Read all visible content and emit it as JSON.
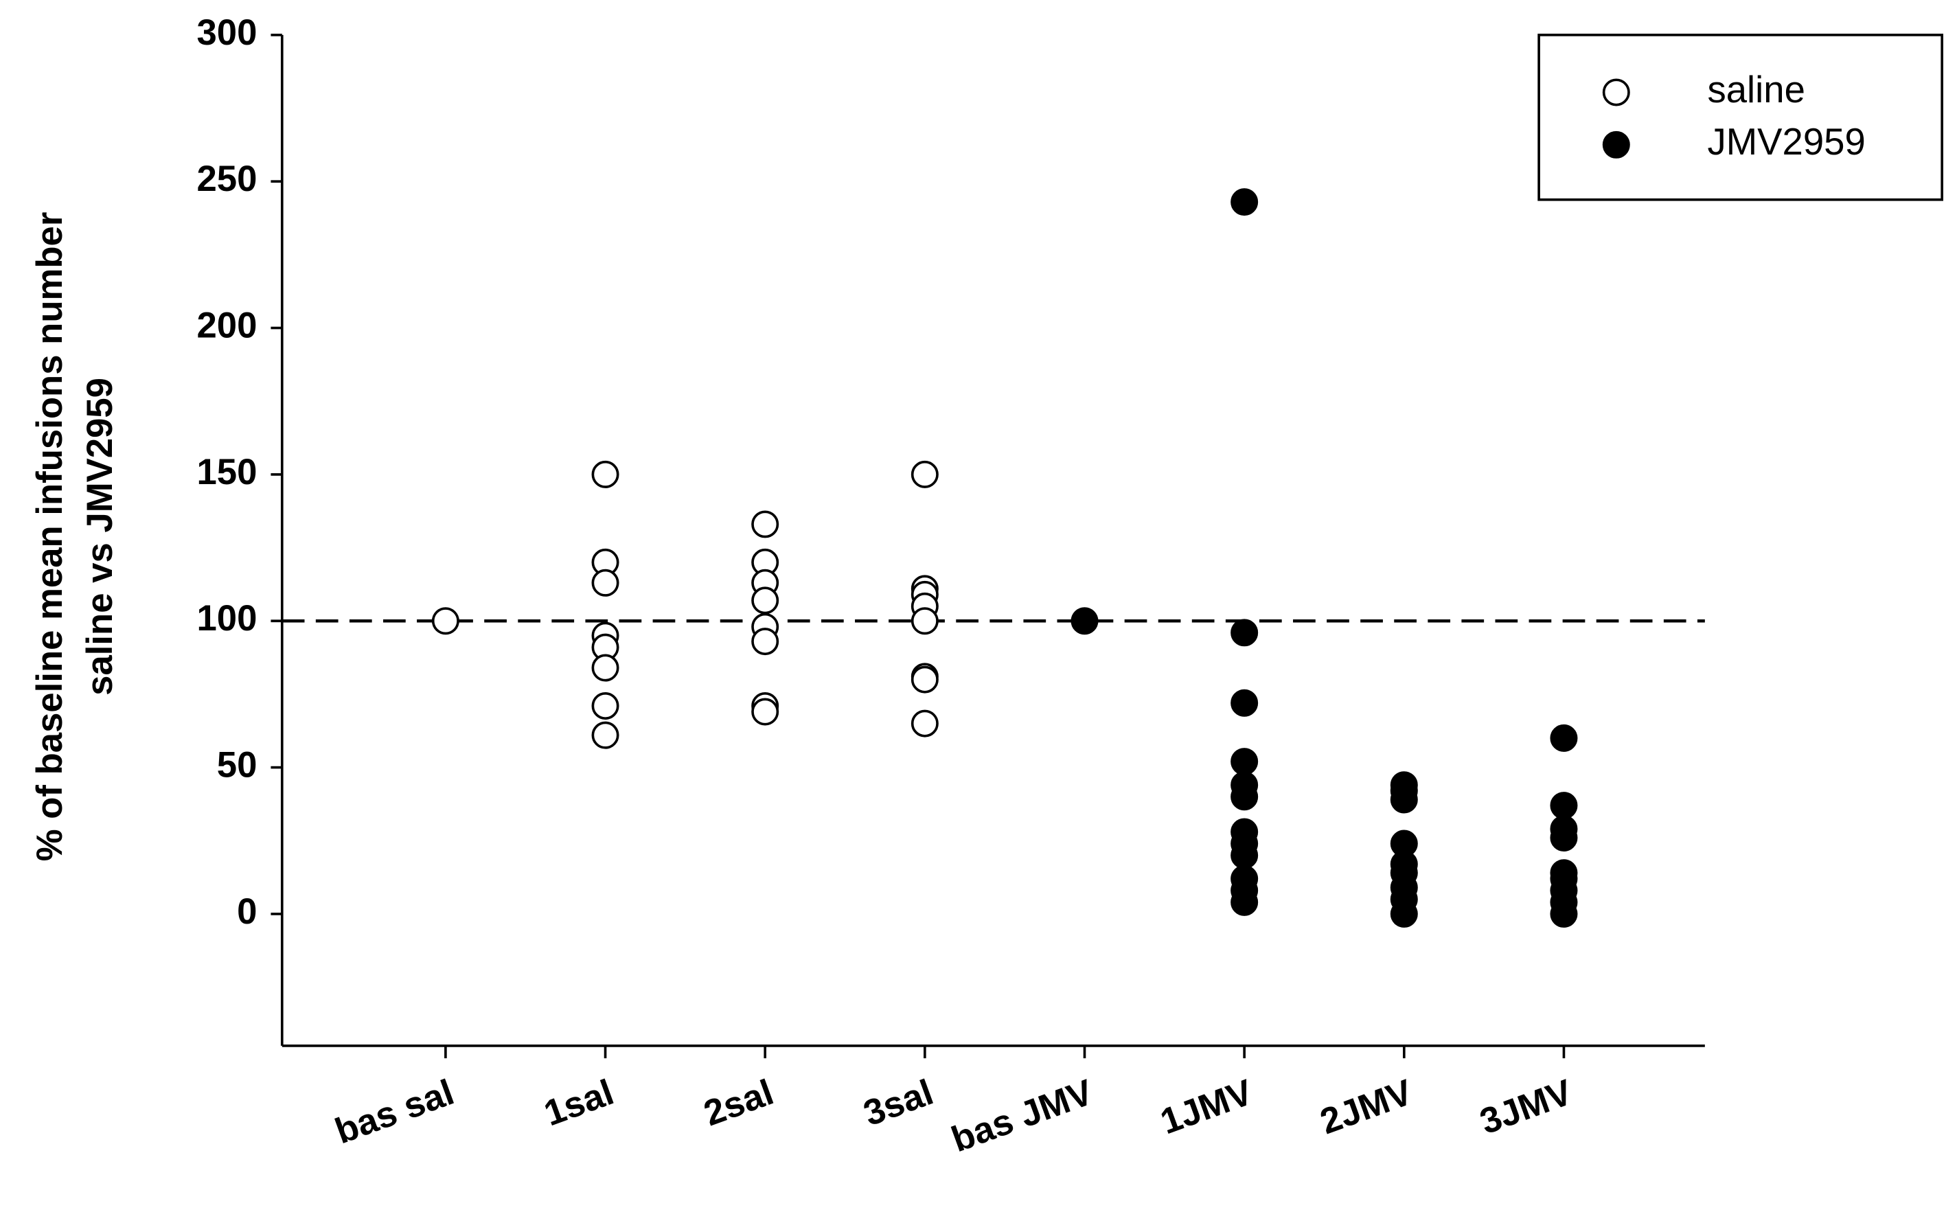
{
  "chart_data": {
    "type": "strip",
    "ylabel": [
      "% of baseline mean infusions number",
      "saline vs JMV2959"
    ],
    "categories": [
      "bas sal",
      "1sal",
      "2sal",
      "3sal",
      "bas JMV",
      "1JMV",
      "2JMV",
      "3JMV"
    ],
    "series": [
      {
        "name": "saline",
        "color": "#ffffff",
        "edgecolor": "#000000",
        "values": [
          [
            100
          ],
          [
            150,
            120,
            113,
            95,
            91,
            84,
            71,
            61
          ],
          [
            133,
            120,
            113,
            107,
            98,
            93,
            71,
            69
          ],
          [
            150,
            111,
            109,
            105,
            100,
            81,
            80,
            65
          ],
          null,
          null,
          null,
          null
        ]
      },
      {
        "name": "JMV2959",
        "color": "#000000",
        "edgecolor": "#000000",
        "values": [
          null,
          null,
          null,
          null,
          [
            100
          ],
          [
            243,
            96,
            72,
            52,
            44,
            40,
            28,
            24,
            20,
            12,
            8,
            4
          ],
          [
            44,
            42,
            39,
            24,
            17,
            14,
            9,
            5,
            0
          ],
          [
            60,
            37,
            29,
            26,
            14,
            12,
            8,
            4,
            0
          ]
        ]
      }
    ],
    "hline": 100,
    "ylim": [
      -45,
      300
    ],
    "yticks": [
      0,
      50,
      100,
      150,
      200,
      250,
      300
    ],
    "legend": "upper right"
  }
}
